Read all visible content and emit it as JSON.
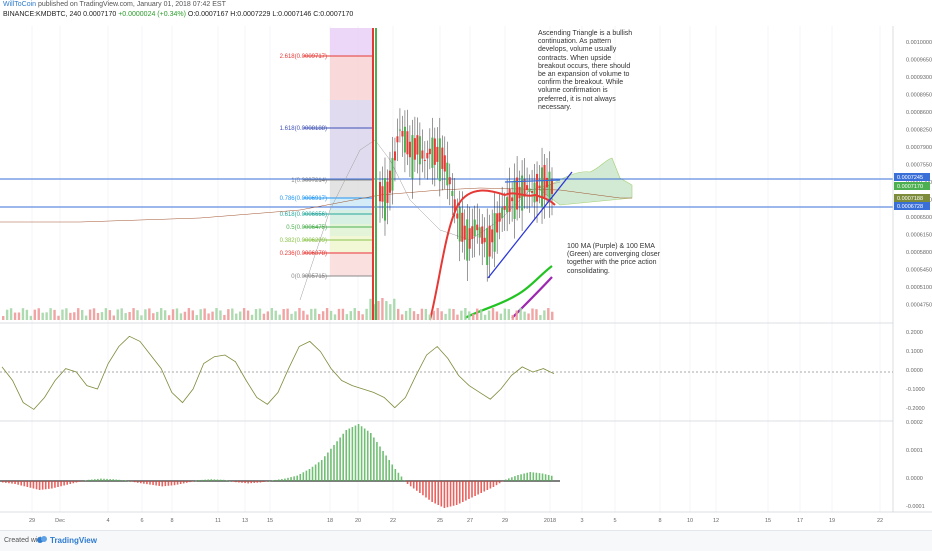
{
  "header": {
    "author": "WillToCoin",
    "published": "published on TradingView.com, January 01, 2018 07:42 EST",
    "symbol": "BINANCE:KMDBTC, 240",
    "price": "0.0007170",
    "change": "+0.0000024 (+0.34%)",
    "ohlc": "O:0.0007167 H:0.0007229 L:0.0007146 C:0.0007170"
  },
  "notes": {
    "triangle": "Ascending Triangle is a bullish continuation. As pattern develops, volume usually contracts. When upside breakout occurs, there should be an expansion of volume to confirm the breakout. While volume confirmation is preferred, it is not always necessary.",
    "ma": "100 MA (Purple) & 100 EMA (Green) are converging closer together with the price action consolidating."
  },
  "footer": {
    "created_with": "Created with",
    "brand": "TradingView"
  },
  "colors": {
    "up": "#4caf50",
    "down": "#e53935",
    "blue_line": "#3a6fd8",
    "ema": "#22c322",
    "ma": "#9c27b0",
    "cloud": "#c8e6c9"
  },
  "chart_data": [
    {
      "type": "line",
      "title": "KMDBTC 240",
      "fib_levels": [
        {
          "label": "2.618(0.0009717)",
          "value": 0.0009717,
          "color": "#e53935"
        },
        {
          "label": "1.618(0.0008188)",
          "value": 0.0008188,
          "color": "#3f51b5"
        },
        {
          "label": "1(0.0007214)",
          "value": 0.0007214,
          "color": "#888888"
        },
        {
          "label": "0.786(0.0006917)",
          "value": 0.0006917,
          "color": "#2196f3"
        },
        {
          "label": "0.618(0.0006656)",
          "value": 0.0006656,
          "color": "#26a69a"
        },
        {
          "label": "0.5(0.0006475)",
          "value": 0.0006475,
          "color": "#4caf50"
        },
        {
          "label": "0.382(0.0006299)",
          "value": 0.0006299,
          "color": "#8bc34a"
        },
        {
          "label": "0.236(0.0006078)",
          "value": 0.0006078,
          "color": "#e53935"
        },
        {
          "label": "0(0.0005715)",
          "value": 0.0005715,
          "color": "#888888"
        }
      ],
      "y_ticks": [
        "0.0010000",
        "0.0009650",
        "0.0009300",
        "0.0008950",
        "0.0008600",
        "0.0008250",
        "0.0007900",
        "0.0007550",
        "0.0007200",
        "0.0006850",
        "0.0006500",
        "0.0006150",
        "0.0005800",
        "0.0005450",
        "0.0005100",
        "0.0004750"
      ],
      "price_tags": [
        "0.0007245",
        "0.0007170",
        "0.0007188",
        "0.0006728"
      ],
      "horizontal_lines": [
        0.0007245,
        0.0006728
      ],
      "price_path": [
        0.0007,
        0.00069,
        0.00074,
        0.00082,
        0.0008,
        0.00077,
        0.00079,
        0.00076,
        0.00078,
        0.00077,
        0.00076,
        0.00072,
        0.00066,
        0.00063,
        0.00061,
        0.00064,
        0.00062,
        0.0006,
        0.00063,
        0.00066,
        0.00068,
        0.00069,
        0.0007,
        0.00071,
        0.0007,
        0.00071,
        0.00072,
        0.00071
      ]
    },
    {
      "type": "line",
      "title": "Oscillator",
      "y_ticks": [
        "0.2000",
        "0.1000",
        "0.0000",
        "-0.1000",
        "-0.2000"
      ],
      "values": [
        0.03,
        -0.05,
        -0.18,
        -0.22,
        -0.15,
        -0.05,
        0.02,
        0.0,
        -0.08,
        -0.1,
        0.05,
        0.15,
        0.21,
        0.18,
        0.1,
        0.02,
        -0.12,
        -0.18,
        -0.1,
        0.05,
        0.09,
        0.1,
        0.06,
        -0.05,
        -0.15,
        -0.19,
        -0.12,
        0.02,
        0.15,
        0.18,
        0.12,
        0.02,
        -0.05,
        -0.08,
        -0.1,
        -0.12,
        -0.15,
        -0.21,
        -0.15,
        -0.02,
        0.1,
        0.15,
        0.08,
        -0.02,
        -0.08,
        -0.12,
        -0.16,
        -0.1,
        -0.02,
        0.03,
        0.0,
        0.02,
        -0.01
      ]
    },
    {
      "type": "bar",
      "title": "Histogram",
      "y_ticks": [
        "0.0002",
        "0.0001",
        "0.0000",
        "-0.0001"
      ],
      "values": [
        -5e-06,
        -1e-05,
        -2e-05,
        -3e-05,
        -2.5e-05,
        -1.5e-05,
        -5e-06,
        4e-06,
        8e-06,
        6e-06,
        2e-06,
        -6e-06,
        -1.2e-05,
        -1.8e-05,
        -1.4e-05,
        -6e-06,
        3e-06,
        6e-06,
        4e-06,
        -4e-06,
        -8e-06,
        -5e-06,
        2e-06,
        8e-06,
        1.8e-05,
        4e-05,
        7e-05,
        0.00012,
        0.00017,
        0.00019,
        0.00016,
        0.0001,
        4e-05,
        -1e-05,
        -4e-05,
        -7e-05,
        -9e-05,
        -8e-05,
        -6e-05,
        -4e-05,
        -2e-05,
        5e-06,
        2e-05,
        3e-05,
        2.5e-05,
        1.5e-05
      ]
    }
  ],
  "x_ticks": [
    "29",
    "Dec",
    "4",
    "6",
    "8",
    "11",
    "13",
    "15",
    "18",
    "20",
    "22",
    "25",
    "27",
    "29",
    "2018",
    "3",
    "5",
    "8",
    "10",
    "12",
    "15",
    "17",
    "19",
    "22"
  ]
}
